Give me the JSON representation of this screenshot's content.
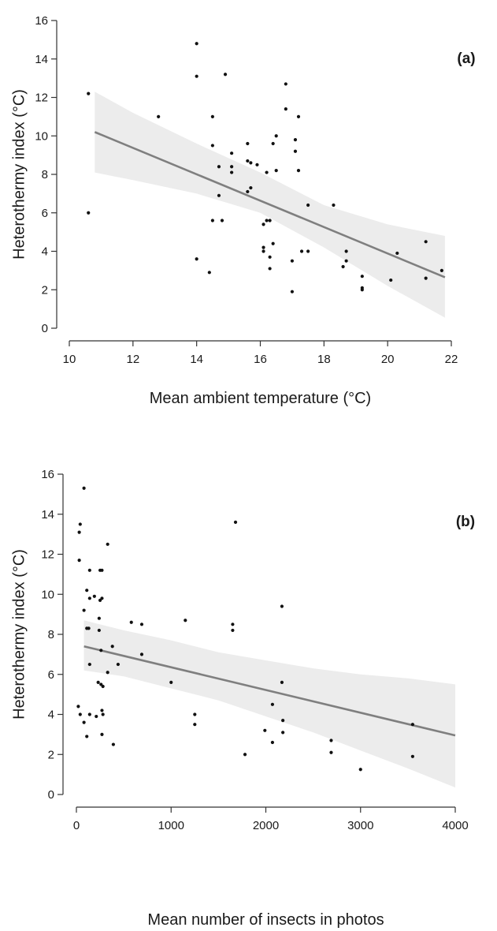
{
  "colors": {
    "points": "#111111",
    "fit_line": "#7f7f7f",
    "ci_band": "#ececec",
    "axis": "#333333"
  },
  "chart_data": [
    {
      "type": "scatter",
      "panel_label": "(a)",
      "xlabel": "Mean ambient temperature (°C)",
      "ylabel": "Heterothermy index (°C)",
      "xlim": [
        10,
        22
      ],
      "ylim": [
        0,
        16
      ],
      "xticks": [
        10,
        12,
        14,
        16,
        18,
        20,
        22
      ],
      "yticks": [
        0,
        2,
        4,
        6,
        8,
        10,
        12,
        14,
        16
      ],
      "points": [
        [
          10.6,
          12.2
        ],
        [
          10.6,
          6.0
        ],
        [
          12.8,
          11.0
        ],
        [
          14.0,
          14.8
        ],
        [
          14.0,
          13.1
        ],
        [
          14.0,
          3.6
        ],
        [
          14.4,
          2.9
        ],
        [
          14.5,
          11.0
        ],
        [
          14.5,
          9.5
        ],
        [
          14.5,
          5.6
        ],
        [
          14.7,
          8.4
        ],
        [
          14.7,
          6.9
        ],
        [
          14.8,
          5.6
        ],
        [
          14.9,
          13.2
        ],
        [
          15.1,
          9.1
        ],
        [
          15.1,
          8.4
        ],
        [
          15.1,
          8.1
        ],
        [
          15.6,
          9.6
        ],
        [
          15.6,
          8.7
        ],
        [
          15.6,
          7.1
        ],
        [
          15.7,
          8.6
        ],
        [
          15.7,
          7.3
        ],
        [
          15.9,
          8.5
        ],
        [
          16.1,
          5.4
        ],
        [
          16.1,
          4.2
        ],
        [
          16.1,
          4.0
        ],
        [
          16.2,
          8.1
        ],
        [
          16.2,
          5.6
        ],
        [
          16.3,
          5.6
        ],
        [
          16.3,
          3.7
        ],
        [
          16.3,
          3.1
        ],
        [
          16.4,
          9.6
        ],
        [
          16.4,
          4.4
        ],
        [
          16.5,
          10.0
        ],
        [
          16.5,
          8.2
        ],
        [
          16.8,
          12.7
        ],
        [
          16.8,
          11.4
        ],
        [
          17.0,
          3.5
        ],
        [
          17.0,
          1.9
        ],
        [
          17.1,
          9.8
        ],
        [
          17.1,
          9.2
        ],
        [
          17.2,
          11.0
        ],
        [
          17.2,
          8.2
        ],
        [
          17.3,
          4.0
        ],
        [
          17.5,
          6.4
        ],
        [
          17.5,
          4.0
        ],
        [
          18.3,
          6.4
        ],
        [
          18.6,
          3.2
        ],
        [
          18.7,
          4.0
        ],
        [
          18.7,
          3.5
        ],
        [
          19.2,
          2.7
        ],
        [
          19.2,
          2.1
        ],
        [
          19.2,
          2.0
        ],
        [
          20.1,
          2.5
        ],
        [
          20.3,
          3.9
        ],
        [
          21.2,
          4.5
        ],
        [
          21.2,
          2.6
        ],
        [
          21.7,
          3.0
        ]
      ],
      "fit": {
        "x": [
          10.8,
          21.8
        ],
        "y": [
          10.2,
          2.65
        ]
      },
      "ci": {
        "x": [
          10.8,
          12.0,
          14.0,
          16.0,
          18.0,
          20.0,
          21.8
        ],
        "upper": [
          12.3,
          11.2,
          9.6,
          8.1,
          6.4,
          5.4,
          4.8
        ],
        "lower": [
          8.1,
          7.7,
          7.0,
          6.0,
          4.2,
          2.2,
          0.55
        ]
      }
    },
    {
      "type": "scatter",
      "panel_label": "(b)",
      "xlabel": "Mean number of insects in photos",
      "ylabel": "Heterothermy index (°C)",
      "xlim": [
        0,
        4000
      ],
      "ylim": [
        0,
        16
      ],
      "xticks": [
        0,
        1000,
        2000,
        3000,
        4000
      ],
      "yticks": [
        0,
        2,
        4,
        6,
        8,
        10,
        12,
        14,
        16
      ],
      "points": [
        [
          80,
          15.3
        ],
        [
          40,
          13.5
        ],
        [
          30,
          13.1
        ],
        [
          330,
          12.5
        ],
        [
          30,
          11.7
        ],
        [
          140,
          11.2
        ],
        [
          250,
          11.2
        ],
        [
          270,
          11.2
        ],
        [
          110,
          10.2
        ],
        [
          190,
          9.9
        ],
        [
          140,
          9.8
        ],
        [
          250,
          9.7
        ],
        [
          270,
          9.8
        ],
        [
          80,
          9.2
        ],
        [
          240,
          8.8
        ],
        [
          110,
          8.3
        ],
        [
          130,
          8.3
        ],
        [
          240,
          8.2
        ],
        [
          580,
          8.6
        ],
        [
          690,
          8.5
        ],
        [
          1150,
          8.7
        ],
        [
          1650,
          8.5
        ],
        [
          1650,
          8.2
        ],
        [
          1680,
          13.6
        ],
        [
          2170,
          9.4
        ],
        [
          260,
          7.2
        ],
        [
          380,
          7.4
        ],
        [
          690,
          7.0
        ],
        [
          140,
          6.5
        ],
        [
          440,
          6.5
        ],
        [
          330,
          6.1
        ],
        [
          230,
          5.6
        ],
        [
          260,
          5.5
        ],
        [
          280,
          5.4
        ],
        [
          1000,
          5.6
        ],
        [
          2170,
          5.6
        ],
        [
          20,
          4.4
        ],
        [
          40,
          4.0
        ],
        [
          140,
          4.0
        ],
        [
          210,
          3.9
        ],
        [
          270,
          4.2
        ],
        [
          280,
          4.0
        ],
        [
          80,
          3.6
        ],
        [
          110,
          2.9
        ],
        [
          270,
          3.0
        ],
        [
          390,
          2.5
        ],
        [
          1250,
          4.0
        ],
        [
          1250,
          3.5
        ],
        [
          2070,
          4.5
        ],
        [
          2180,
          3.7
        ],
        [
          1990,
          3.2
        ],
        [
          2180,
          3.1
        ],
        [
          2070,
          2.6
        ],
        [
          1780,
          2.0
        ],
        [
          2690,
          2.7
        ],
        [
          2690,
          2.1
        ],
        [
          3000,
          1.25
        ],
        [
          3550,
          3.5
        ],
        [
          3550,
          1.9
        ]
      ],
      "fit": {
        "x": [
          80,
          4000
        ],
        "y": [
          7.4,
          2.95
        ]
      },
      "ci": {
        "x": [
          80,
          500,
          1000,
          1500,
          2000,
          2500,
          3000,
          3500,
          4000
        ],
        "upper": [
          8.7,
          8.2,
          7.7,
          7.1,
          6.7,
          6.3,
          6.0,
          5.8,
          5.5
        ],
        "lower": [
          6.2,
          5.9,
          5.3,
          4.7,
          3.9,
          3.1,
          2.2,
          1.3,
          0.35
        ]
      }
    }
  ]
}
